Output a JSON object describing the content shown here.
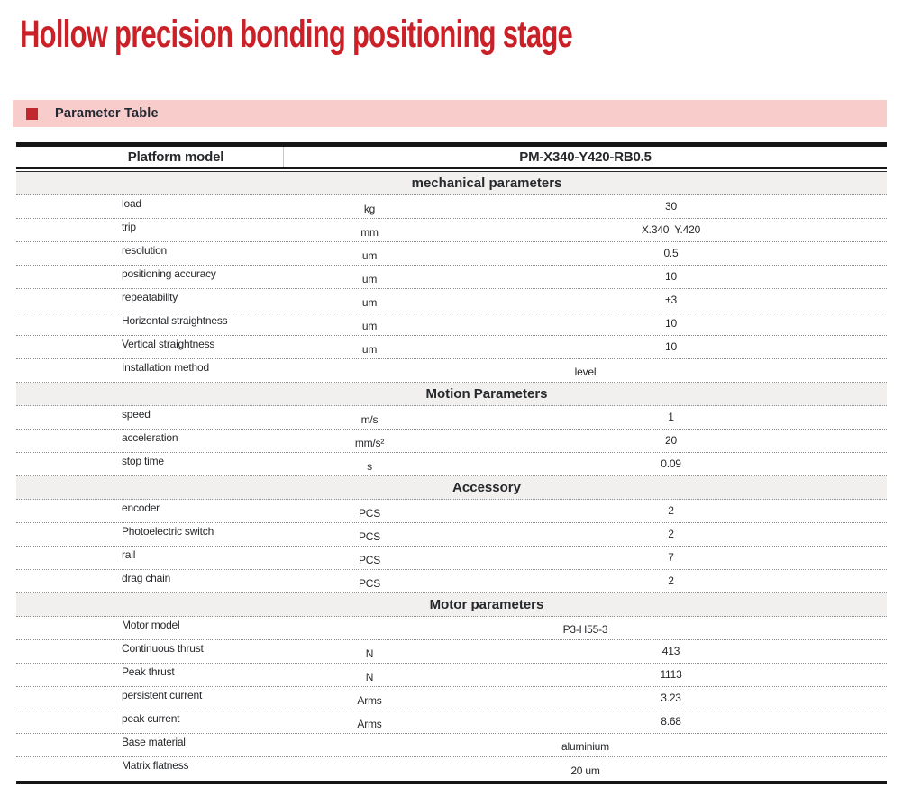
{
  "page_title": "Hollow precision bonding positioning stage",
  "banner": {
    "label": "Parameter Table",
    "bullet_icon": "red-square",
    "accent_color": "#c1272d",
    "background_color": "#f8cccb"
  },
  "colors": {
    "title_red": "#ca2128",
    "table_border_black": "#161616",
    "section_row_gray": "#f1f0ef",
    "text_dark": "#26282b"
  },
  "table": {
    "header": {
      "col1": "Platform model",
      "col2": "PM-X340-Y420-RB0.5"
    },
    "sections": [
      {
        "title": "mechanical parameters",
        "rows": [
          {
            "label": "load",
            "unit": "kg",
            "value": "30"
          },
          {
            "label": "trip",
            "unit": "mm",
            "value": "X.340  Y.420"
          },
          {
            "label": "resolution",
            "unit": "um",
            "value": "0.5"
          },
          {
            "label": "positioning accuracy",
            "unit": "um",
            "value": "10"
          },
          {
            "label": "repeatability",
            "unit": "um",
            "value": "±3"
          },
          {
            "label": "Horizontal straightness",
            "unit": "um",
            "value": "10"
          },
          {
            "label": "Vertical straightness",
            "unit": "um",
            "value": "10"
          },
          {
            "label": "Installation method",
            "unit": "",
            "value": "level",
            "span": true
          }
        ]
      },
      {
        "title": "Motion Parameters",
        "rows": [
          {
            "label": "speed",
            "unit": "m/s",
            "value": "1"
          },
          {
            "label": "acceleration",
            "unit": "mm/s²",
            "value": "20"
          },
          {
            "label": "stop time",
            "unit": "s",
            "value": "0.09"
          }
        ]
      },
      {
        "title": "Accessory",
        "rows": [
          {
            "label": "encoder",
            "unit": "PCS",
            "value": "2"
          },
          {
            "label": "Photoelectric switch",
            "unit": "PCS",
            "value": "2"
          },
          {
            "label": "rail",
            "unit": "PCS",
            "value": "7"
          },
          {
            "label": "drag chain",
            "unit": "PCS",
            "value": "2"
          }
        ]
      },
      {
        "title": "Motor parameters",
        "rows": [
          {
            "label": "Motor model",
            "unit": "",
            "value": "P3-H55-3",
            "span": true
          },
          {
            "label": "Continuous thrust",
            "unit": "N",
            "value": "413"
          },
          {
            "label": "Peak thrust",
            "unit": "N",
            "value": "1113"
          },
          {
            "label": "persistent current",
            "unit": "Arms",
            "value": "3.23"
          },
          {
            "label": "peak current",
            "unit": "Arms",
            "value": "8.68"
          },
          {
            "label": "Base material",
            "unit": "",
            "value": "aluminium",
            "span": true
          },
          {
            "label": "Matrix flatness",
            "unit": "",
            "value": "20 um",
            "span": true
          }
        ]
      }
    ]
  }
}
